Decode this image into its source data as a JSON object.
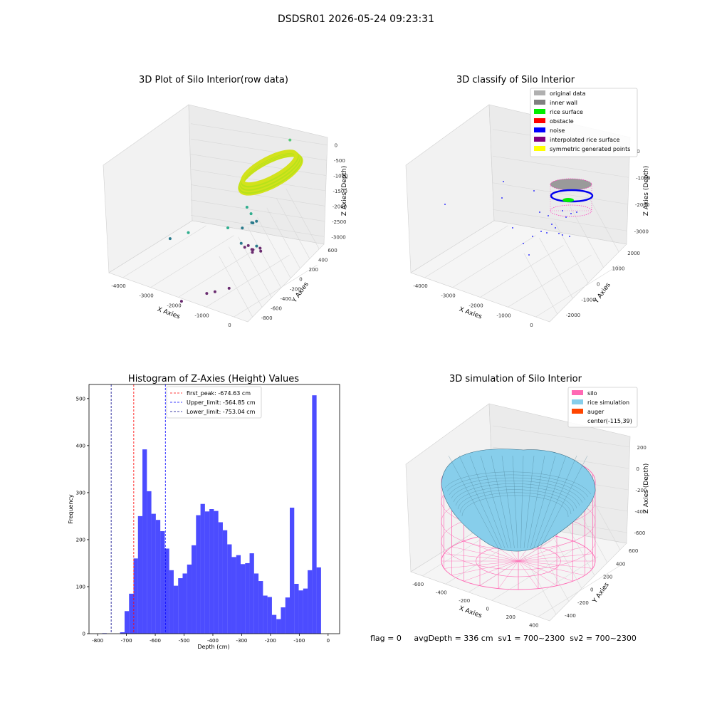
{
  "figure": {
    "suptitle": "DSDSR01 2026-05-24 09:23:31",
    "footer": "flag = 0     avgDepth = 336 cm  sv1 = 700~2300  sv2 = 700~2300"
  },
  "chart_data": [
    {
      "type": "scatter",
      "title": "3D Plot of Silo Interior(row data)",
      "xlabel": "X Axies",
      "ylabel": "Y Axies",
      "zlabel": "Z Axies (Depth)",
      "x_ticks": [
        "-4000",
        "-3000",
        "-2000",
        "-1000",
        "0"
      ],
      "y_ticks": [
        "-800",
        "-600",
        "-400",
        "-200",
        "0",
        "200",
        "400",
        "600"
      ],
      "z_ticks": [
        "0",
        "-500",
        "-1000",
        "-1500",
        "-2000",
        "-2500",
        "-3000"
      ],
      "xlim": [
        -4300,
        300
      ],
      "ylim": [
        -900,
        700
      ],
      "zlim": [
        -3300,
        100
      ],
      "colormap": "viridis (colored by depth)",
      "series": [
        {
          "x": [
            -4100,
            -3400,
            -1500,
            -500,
            -1050,
            -950,
            -850,
            -2000,
            -1800,
            -1600,
            -1400,
            -1300,
            -1200,
            -1000,
            -800,
            -700,
            -2200,
            -1800,
            -1600,
            -1400,
            -2600,
            -1900,
            -1700,
            -1300
          ],
          "y": [
            100,
            50,
            -300,
            400,
            100,
            -150,
            -300,
            300,
            250,
            200,
            150,
            100,
            50,
            0,
            -50,
            -100,
            450,
            400,
            300,
            250,
            -600,
            -500,
            -450,
            -400
          ],
          "z": [
            -1800,
            -1750,
            -1700,
            -300,
            -1100,
            -1600,
            -1300,
            -2600,
            -2700,
            -2650,
            -2750,
            -2800,
            -2700,
            -2600,
            -2650,
            -2700,
            -2300,
            -2200,
            -2150,
            -2100,
            -3100,
            -3150,
            -3200,
            -3250
          ]
        }
      ],
      "ring": {
        "center_x": -150,
        "center_y": 300,
        "depth_min": -1000,
        "depth_max": -400
      }
    },
    {
      "type": "scatter",
      "title": "3D classify of Silo Interior",
      "xlabel": "X Axies",
      "ylabel": "Y Axies",
      "zlabel": "Z Axies (Depth)",
      "x_ticks": [
        "-4000",
        "-3000",
        "-2000",
        "-1000",
        "0"
      ],
      "y_ticks": [
        "-2000",
        "-1000",
        "0",
        "1000",
        "2000"
      ],
      "z_ticks": [
        "0",
        "-1000",
        "-2000",
        "-3000"
      ],
      "legend_position": "top-right",
      "legend": [
        {
          "name": "original data",
          "color": "#b0b0b0"
        },
        {
          "name": "inner wall",
          "color": "#808080"
        },
        {
          "name": "rice surface",
          "color": "#00ee00"
        },
        {
          "name": "obstacle",
          "color": "#ff0000"
        },
        {
          "name": "noise",
          "color": "#0000ff"
        },
        {
          "name": "interpolated rice surface",
          "color": "#800080"
        },
        {
          "name": "symmetric generated points",
          "color": "#ffff00"
        }
      ]
    },
    {
      "type": "bar",
      "title": "Histogram of Z-Axies (Height) Values",
      "xlabel": "Depth (cm)",
      "ylabel": "Frequency",
      "xlim": [
        -830,
        40
      ],
      "ylim": [
        0,
        530
      ],
      "x_ticks": [
        -800,
        -700,
        -600,
        -500,
        -400,
        -300,
        -200,
        -100,
        0
      ],
      "y_ticks": [
        0,
        100,
        200,
        300,
        400,
        500
      ],
      "bin_width": 15.5,
      "bins_start": -784,
      "values": [
        1,
        0,
        0,
        0,
        3,
        48,
        85,
        160,
        250,
        392,
        303,
        255,
        242,
        218,
        181,
        135,
        102,
        118,
        128,
        147,
        188,
        252,
        276,
        260,
        265,
        261,
        237,
        220,
        190,
        163,
        167,
        148,
        150,
        171,
        128,
        112,
        81,
        78,
        40,
        31,
        56,
        77,
        268,
        106,
        92,
        96,
        135,
        507,
        141
      ],
      "bar_color": "#0000ff",
      "vlines": [
        {
          "label": "first_peak: -674.63 cm",
          "x": -674.63,
          "color": "#ff0000"
        },
        {
          "label": "Upper_limit: -564.85 cm",
          "x": -564.85,
          "color": "#0000ff"
        },
        {
          "label": "Lower_limit: -753.04 cm",
          "x": -753.04,
          "color": "#00008b"
        }
      ],
      "legend_position": "top-center"
    },
    {
      "type": "area",
      "title": "3D simulation of Silo Interior",
      "xlabel": "X Axies",
      "ylabel": "Y Axies",
      "zlabel": "Z Axies (Depth)",
      "x_ticks": [
        "-600",
        "-400",
        "-200",
        "0",
        "200",
        "400"
      ],
      "y_ticks": [
        "-400",
        "-200",
        "0",
        "200",
        "400",
        "600"
      ],
      "z_ticks": [
        "200",
        "0",
        "-200",
        "-400",
        "-600"
      ],
      "legend_position": "top-right",
      "legend": [
        {
          "name": "silo",
          "color": "#ff69b4"
        },
        {
          "name": "rice simulation",
          "color": "#87ceeb"
        },
        {
          "name": "auger",
          "color": "#ff4500"
        },
        {
          "name": "center(-115,39)",
          "color": ""
        }
      ]
    }
  ]
}
